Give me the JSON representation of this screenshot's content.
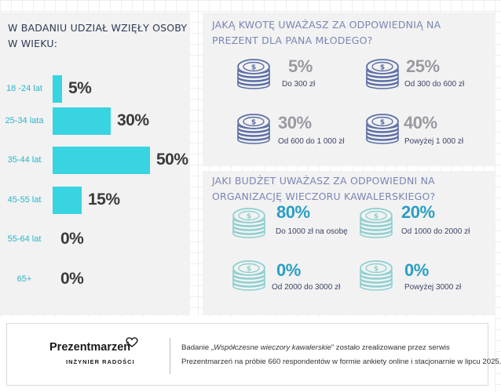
{
  "chart_data": [
    {
      "type": "bar",
      "title": "W BADANIU UDZIAŁ WZIĘŁY OSOBY W WIEKU:",
      "categories": [
        "18 -24 lat",
        "25-34  lata",
        "35-44 lat",
        "45-55 lat",
        "55-64 lat",
        "65+"
      ],
      "values": [
        5,
        30,
        50,
        15,
        0,
        0
      ],
      "value_labels": [
        "5%",
        "30%",
        "50%",
        "15%",
        "0%",
        "0%"
      ],
      "orientation": "horizontal",
      "bar_color": "#39d4e1"
    },
    {
      "type": "table",
      "title": "JAKĄ KWOTĘ UWAŻASZ ZA ODPOWIEDNIĄ NA PREZENT DLA PANA MŁODEGO?",
      "items": [
        {
          "value": 5,
          "pct": "5%",
          "label": "Do 300 zł"
        },
        {
          "value": 25,
          "pct": "25%",
          "label": "Od 300 do 600 zł"
        },
        {
          "value": 30,
          "pct": "30%",
          "label": "Od 600 do 1 000 zł"
        },
        {
          "value": 40,
          "pct": "40%",
          "label": "Powyżej 1 000 zł"
        }
      ]
    },
    {
      "type": "table",
      "title": "JAKI BUDŻET UWAŻASZ ZA ODPOWIEDNI NA ORGANIZACJĘ WIECZORU KAWALERSKIEGO?",
      "items": [
        {
          "value": 80,
          "pct": "80%",
          "label": "Do 1000 zł na osobę"
        },
        {
          "value": 20,
          "pct": "20%",
          "label": "Od 1000 do 2000 zł"
        },
        {
          "value": 0,
          "pct": "0%",
          "label": "Od 2000 do 3000 zł"
        },
        {
          "value": 0,
          "pct": "0%",
          "label": "Powyżej 3000 zł"
        }
      ]
    }
  ],
  "icons": {
    "coin_stack": "coin-stack-icon"
  },
  "colors": {
    "bar": "#39d4e1",
    "coin_gift": "#5c6ea6",
    "coin_budget": "#8fcfd0",
    "pct_gift": "#999aa1",
    "pct_budget": "#2a9ec4"
  },
  "footer": {
    "logo_name": "Prezentmarzeń",
    "logo_tag": "INŻYNIER RADOŚCI",
    "line1_pre": "Badanie „",
    "line1_em": "Współczesne wieczory kawalerskie",
    "line1_post": "” zostało zrealizowane przez serwis",
    "line2": "Prezentmarzeń na próbie 660 respondentów w formie ankiety online i stacjonarnie w lipcu 2025."
  }
}
